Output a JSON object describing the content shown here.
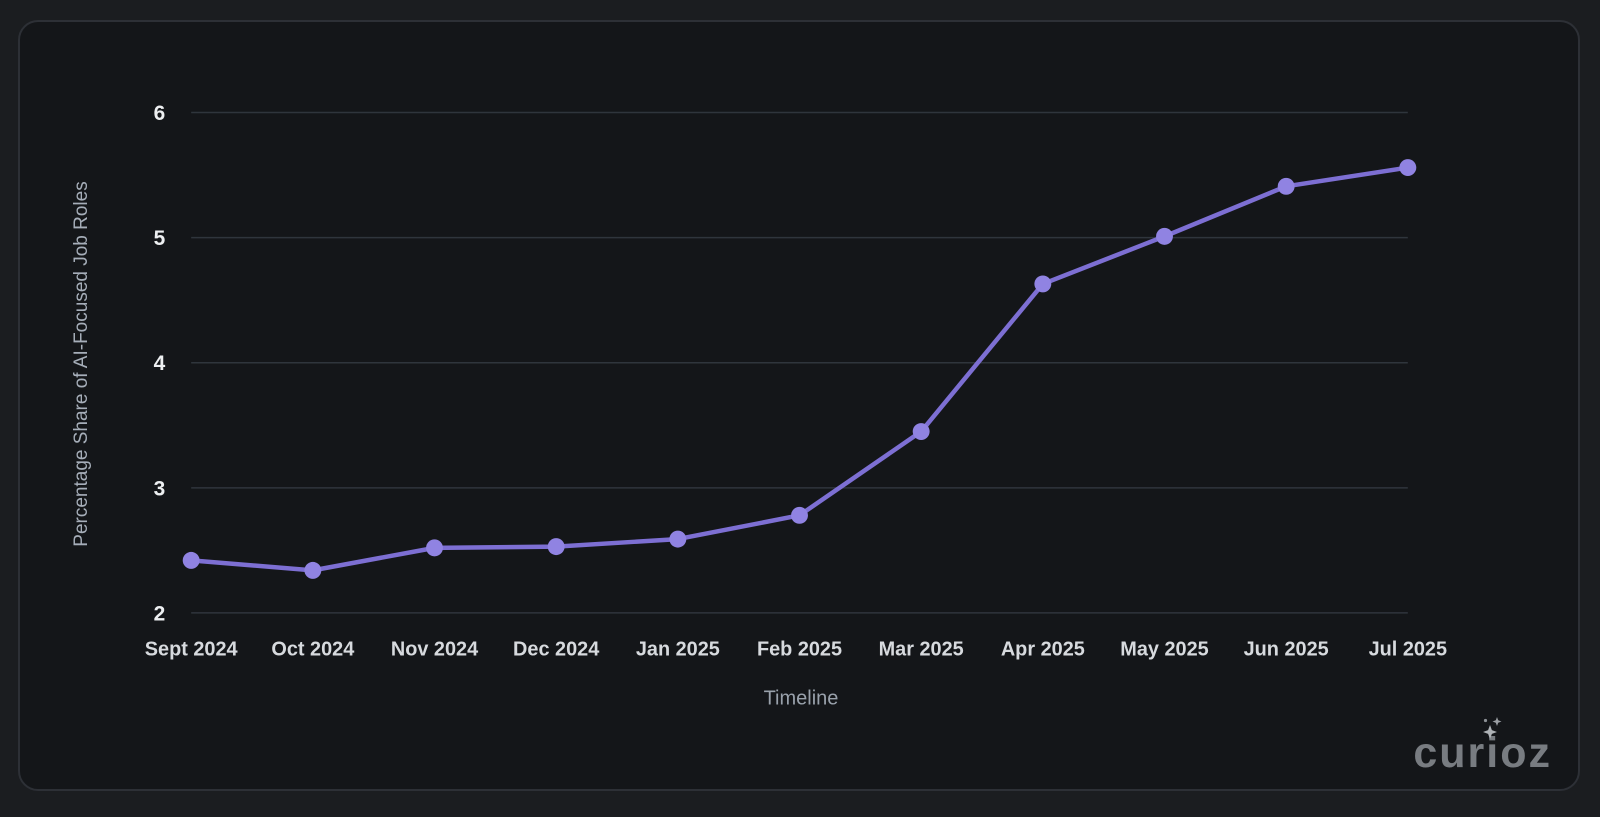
{
  "brand": {
    "text": "curioz"
  },
  "chart_data": {
    "type": "line",
    "categories": [
      "Sept 2024",
      "Oct 2024",
      "Nov 2024",
      "Dec 2024",
      "Jan 2025",
      "Feb 2025",
      "Mar 2025",
      "Apr 2025",
      "May 2025",
      "Jun 2025",
      "Jul 2025"
    ],
    "values": [
      2.42,
      2.34,
      2.52,
      2.53,
      2.59,
      2.78,
      3.45,
      4.63,
      5.01,
      5.41,
      5.56
    ],
    "title": "",
    "xlabel": "Timeline",
    "ylabel": "Percentage Share of AI-Focused Job Roles",
    "ylim": [
      2,
      6
    ],
    "yticks": [
      2,
      3,
      4,
      5,
      6
    ],
    "grid": "horizontal",
    "legend": "none",
    "colors": {
      "line": "#7d6fd3",
      "point": "#9083e2",
      "grid_line": "#2f353c",
      "y_tick_text": "#edeff1",
      "x_tick_text": "#d7dade",
      "axis_title": "#a6aeb9",
      "card_background": "#141619",
      "page_background": "#1b1d20",
      "card_border": "#2d3036",
      "brand_text": "#787c81",
      "sparkle": "#aeb2b6"
    }
  }
}
